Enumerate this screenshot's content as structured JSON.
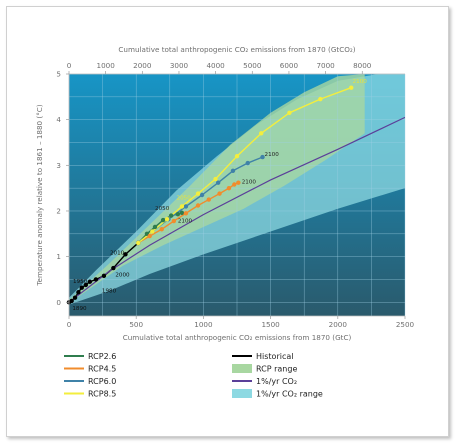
{
  "chart_data": {
    "type": "line",
    "top_axis": {
      "label": "Cumulative total anthropogenic CO₂ emissions from 1870 (GtCO₂)",
      "ticks": [
        0,
        1000,
        2000,
        3000,
        4000,
        5000,
        6000,
        7000,
        8000
      ],
      "tick_labels": [
        "0",
        "1000",
        "2000",
        "3000",
        "4000",
        "5000",
        "6000",
        "7000",
        "8000"
      ],
      "range": [
        0,
        9166
      ]
    },
    "xlabel": "Cumulative total anthropogenic CO₂ emissions from 1870 (GtC)",
    "xlim": [
      0,
      2500
    ],
    "x_ticks": [
      0,
      500,
      1000,
      1500,
      2000,
      2500
    ],
    "x_tick_labels": [
      "0",
      "500",
      "1000",
      "1500",
      "2000",
      "2500"
    ],
    "ylabel": "Temperature anomaly relative to 1861 – 1880 (°C)",
    "ylim": [
      -0.3,
      5
    ],
    "y_ticks": [
      0,
      1,
      2,
      3,
      4,
      5
    ],
    "y_tick_labels": [
      "0",
      "1",
      "2",
      "3",
      "4",
      "5"
    ],
    "grid": true,
    "colors": {
      "bg_top": "#1795c6",
      "bg_bottom": "#2a5a6c",
      "grid": "#9fd0e4",
      "ramp_range": "#8dd9e2",
      "rcp_range": "#a8d7a1",
      "ramp_line": "#5b3f99",
      "historical": "#000000",
      "rcp26": "#2f7d4e",
      "rcp45": "#f18c2c",
      "rcp60": "#3f82a8",
      "rcp85": "#f3ee3d",
      "axis_text": "#6f6f6f"
    },
    "series": [
      {
        "name": "Historical",
        "color": "#000000",
        "points": [
          [
            0,
            0
          ],
          [
            20,
            0.03
          ],
          [
            45,
            0.1
          ],
          [
            70,
            0.22
          ],
          [
            95,
            0.32
          ],
          [
            125,
            0.38
          ],
          [
            155,
            0.45
          ],
          [
            200,
            0.5
          ],
          [
            260,
            0.58
          ],
          [
            330,
            0.75
          ],
          [
            420,
            1.05
          ],
          [
            515,
            1.3
          ]
        ],
        "labels": [
          {
            "text": "1890",
            "x": 25,
            "y": -0.17
          },
          {
            "text": "1950",
            "x": 30,
            "y": 0.42
          },
          {
            "text": "1980",
            "x": 245,
            "y": 0.22
          },
          {
            "text": "2000",
            "x": 345,
            "y": 0.57
          },
          {
            "text": "2010",
            "x": 305,
            "y": 1.05
          }
        ]
      },
      {
        "name": "RCP2.6",
        "color": "#2f7d4e",
        "points": [
          [
            515,
            1.3
          ],
          [
            580,
            1.5
          ],
          [
            640,
            1.65
          ],
          [
            700,
            1.8
          ],
          [
            760,
            1.9
          ],
          [
            810,
            1.93
          ],
          [
            840,
            1.96
          ]
        ],
        "labels": [
          {
            "text": "2050",
            "x": 640,
            "y": 2.02
          },
          {
            "text": "2100",
            "x": 810,
            "y": 1.75
          }
        ]
      },
      {
        "name": "RCP4.5",
        "color": "#f18c2c",
        "points": [
          [
            515,
            1.3
          ],
          [
            600,
            1.45
          ],
          [
            690,
            1.6
          ],
          [
            780,
            1.78
          ],
          [
            870,
            1.95
          ],
          [
            960,
            2.12
          ],
          [
            1040,
            2.25
          ],
          [
            1120,
            2.38
          ],
          [
            1190,
            2.5
          ],
          [
            1230,
            2.58
          ],
          [
            1260,
            2.62
          ]
        ],
        "labels": [
          {
            "text": "2100",
            "x": 1285,
            "y": 2.6
          }
        ]
      },
      {
        "name": "RCP6.0",
        "color": "#3f82a8",
        "points": [
          [
            515,
            1.3
          ],
          [
            620,
            1.55
          ],
          [
            740,
            1.82
          ],
          [
            870,
            2.1
          ],
          [
            990,
            2.35
          ],
          [
            1110,
            2.62
          ],
          [
            1220,
            2.88
          ],
          [
            1330,
            3.05
          ],
          [
            1440,
            3.18
          ]
        ],
        "labels": [
          {
            "text": "2100",
            "x": 1455,
            "y": 3.2
          }
        ]
      },
      {
        "name": "RCP8.5",
        "color": "#f3ee3d",
        "points": [
          [
            515,
            1.3
          ],
          [
            620,
            1.55
          ],
          [
            730,
            1.82
          ],
          [
            840,
            2.1
          ],
          [
            960,
            2.38
          ],
          [
            1090,
            2.7
          ],
          [
            1250,
            3.2
          ],
          [
            1430,
            3.7
          ],
          [
            1640,
            4.15
          ],
          [
            1870,
            4.45
          ],
          [
            2100,
            4.7
          ]
        ],
        "labels": [
          {
            "text": "2050",
            "x": 800,
            "y": 2.25
          },
          {
            "text": "2100",
            "x": 2110,
            "y": 4.8
          }
        ]
      },
      {
        "name": "1%/yr CO₂",
        "color": "#5b3f99",
        "points": [
          [
            0,
            0
          ],
          [
            300,
            0.68
          ],
          [
            600,
            1.25
          ],
          [
            1000,
            1.92
          ],
          [
            1500,
            2.68
          ],
          [
            2000,
            3.35
          ],
          [
            2500,
            4.05
          ]
        ]
      }
    ],
    "ranges": [
      {
        "name": "1%/yr CO₂ range",
        "color": "#8dd9e2",
        "upper": [
          [
            0,
            0.1
          ],
          [
            200,
            0.7
          ],
          [
            500,
            1.55
          ],
          [
            800,
            2.45
          ],
          [
            1100,
            3.2
          ],
          [
            1400,
            3.9
          ],
          [
            1700,
            4.45
          ],
          [
            2000,
            4.85
          ],
          [
            2300,
            5.0
          ],
          [
            2500,
            5.0
          ]
        ],
        "lower": [
          [
            0,
            -0.05
          ],
          [
            300,
            0.25
          ],
          [
            600,
            0.62
          ],
          [
            1000,
            1.05
          ],
          [
            1500,
            1.55
          ],
          [
            2000,
            2.05
          ],
          [
            2500,
            2.5
          ]
        ]
      },
      {
        "name": "RCP range",
        "color": "#a8d7a1",
        "upper": [
          [
            0,
            0.05
          ],
          [
            300,
            0.85
          ],
          [
            600,
            1.7
          ],
          [
            900,
            2.55
          ],
          [
            1200,
            3.45
          ],
          [
            1500,
            4.15
          ],
          [
            1750,
            4.6
          ],
          [
            2000,
            4.95
          ],
          [
            2200,
            5.0
          ]
        ],
        "lower": [
          [
            0,
            -0.02
          ],
          [
            400,
            0.8
          ],
          [
            700,
            1.25
          ],
          [
            1000,
            1.65
          ],
          [
            1300,
            2.05
          ],
          [
            1600,
            2.55
          ],
          [
            1900,
            3.1
          ],
          [
            2200,
            3.7
          ]
        ]
      }
    ],
    "legend": {
      "placement": "bottom",
      "items": [
        {
          "label": "RCP2.6",
          "kind": "line",
          "color": "#2f7d4e"
        },
        {
          "label": "RCP4.5",
          "kind": "line",
          "color": "#f18c2c"
        },
        {
          "label": "RCP6.0",
          "kind": "line",
          "color": "#3f82a8"
        },
        {
          "label": "RCP8.5",
          "kind": "line",
          "color": "#f3ee3d"
        },
        {
          "label": "Historical",
          "kind": "line",
          "color": "#000000"
        },
        {
          "label": "RCP range",
          "kind": "patch",
          "color": "#a8d7a1"
        },
        {
          "label": "1%/yr CO₂",
          "kind": "line",
          "color": "#5b3f99"
        },
        {
          "label": "1%/yr CO₂ range",
          "kind": "patch",
          "color": "#8dd9e2"
        }
      ]
    }
  }
}
